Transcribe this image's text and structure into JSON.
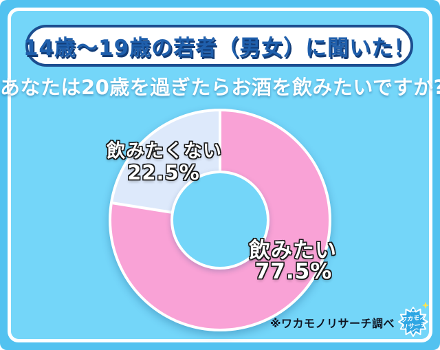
{
  "colors": {
    "outer_background": "#52C2F0",
    "inner_background": "#74D6F9",
    "frame_stroke": "#FFFFFF",
    "banner_background": "#FFFFFF",
    "banner_border": "#1C4E90",
    "banner_text": "#1F5FAC",
    "question_text": "#FFFFFF",
    "slice_want_pink": "#F9A2D6",
    "slice_notwant_paleblue": "#DDE9FB",
    "slice_label_text": "#FFFFFF",
    "slice_label_outline": "#1A1A1A",
    "source_note_text": "#0F1320",
    "logo_blue": "#2EA6E3",
    "logo_sparkle_yellow": "#FFE44D"
  },
  "header": {
    "banner_title": "14歳〜19歳の若者（男女）に聞いた！",
    "question": "あなたは20歳を過ぎたらお酒を飲みたいですか?"
  },
  "chart_data": {
    "type": "pie",
    "donut": true,
    "title": "あなたは20歳を過ぎたらお酒を飲みたいですか?",
    "unit": "%",
    "start_angle_deg": 0,
    "direction": "clockwise",
    "slices": [
      {
        "label": "飲みたい",
        "value": 77.5,
        "pct_text": "77.5%",
        "color": "#F9A2D6"
      },
      {
        "label": "飲みたくない",
        "value": 22.5,
        "pct_text": "22.5%",
        "color": "#DDE9FB"
      }
    ],
    "legend_position": "on-chart"
  },
  "footer": {
    "source_note": "※ワカモノリサーチ調べ",
    "logo_line1": "ワカモノ",
    "logo_line2": "リサーチ"
  }
}
